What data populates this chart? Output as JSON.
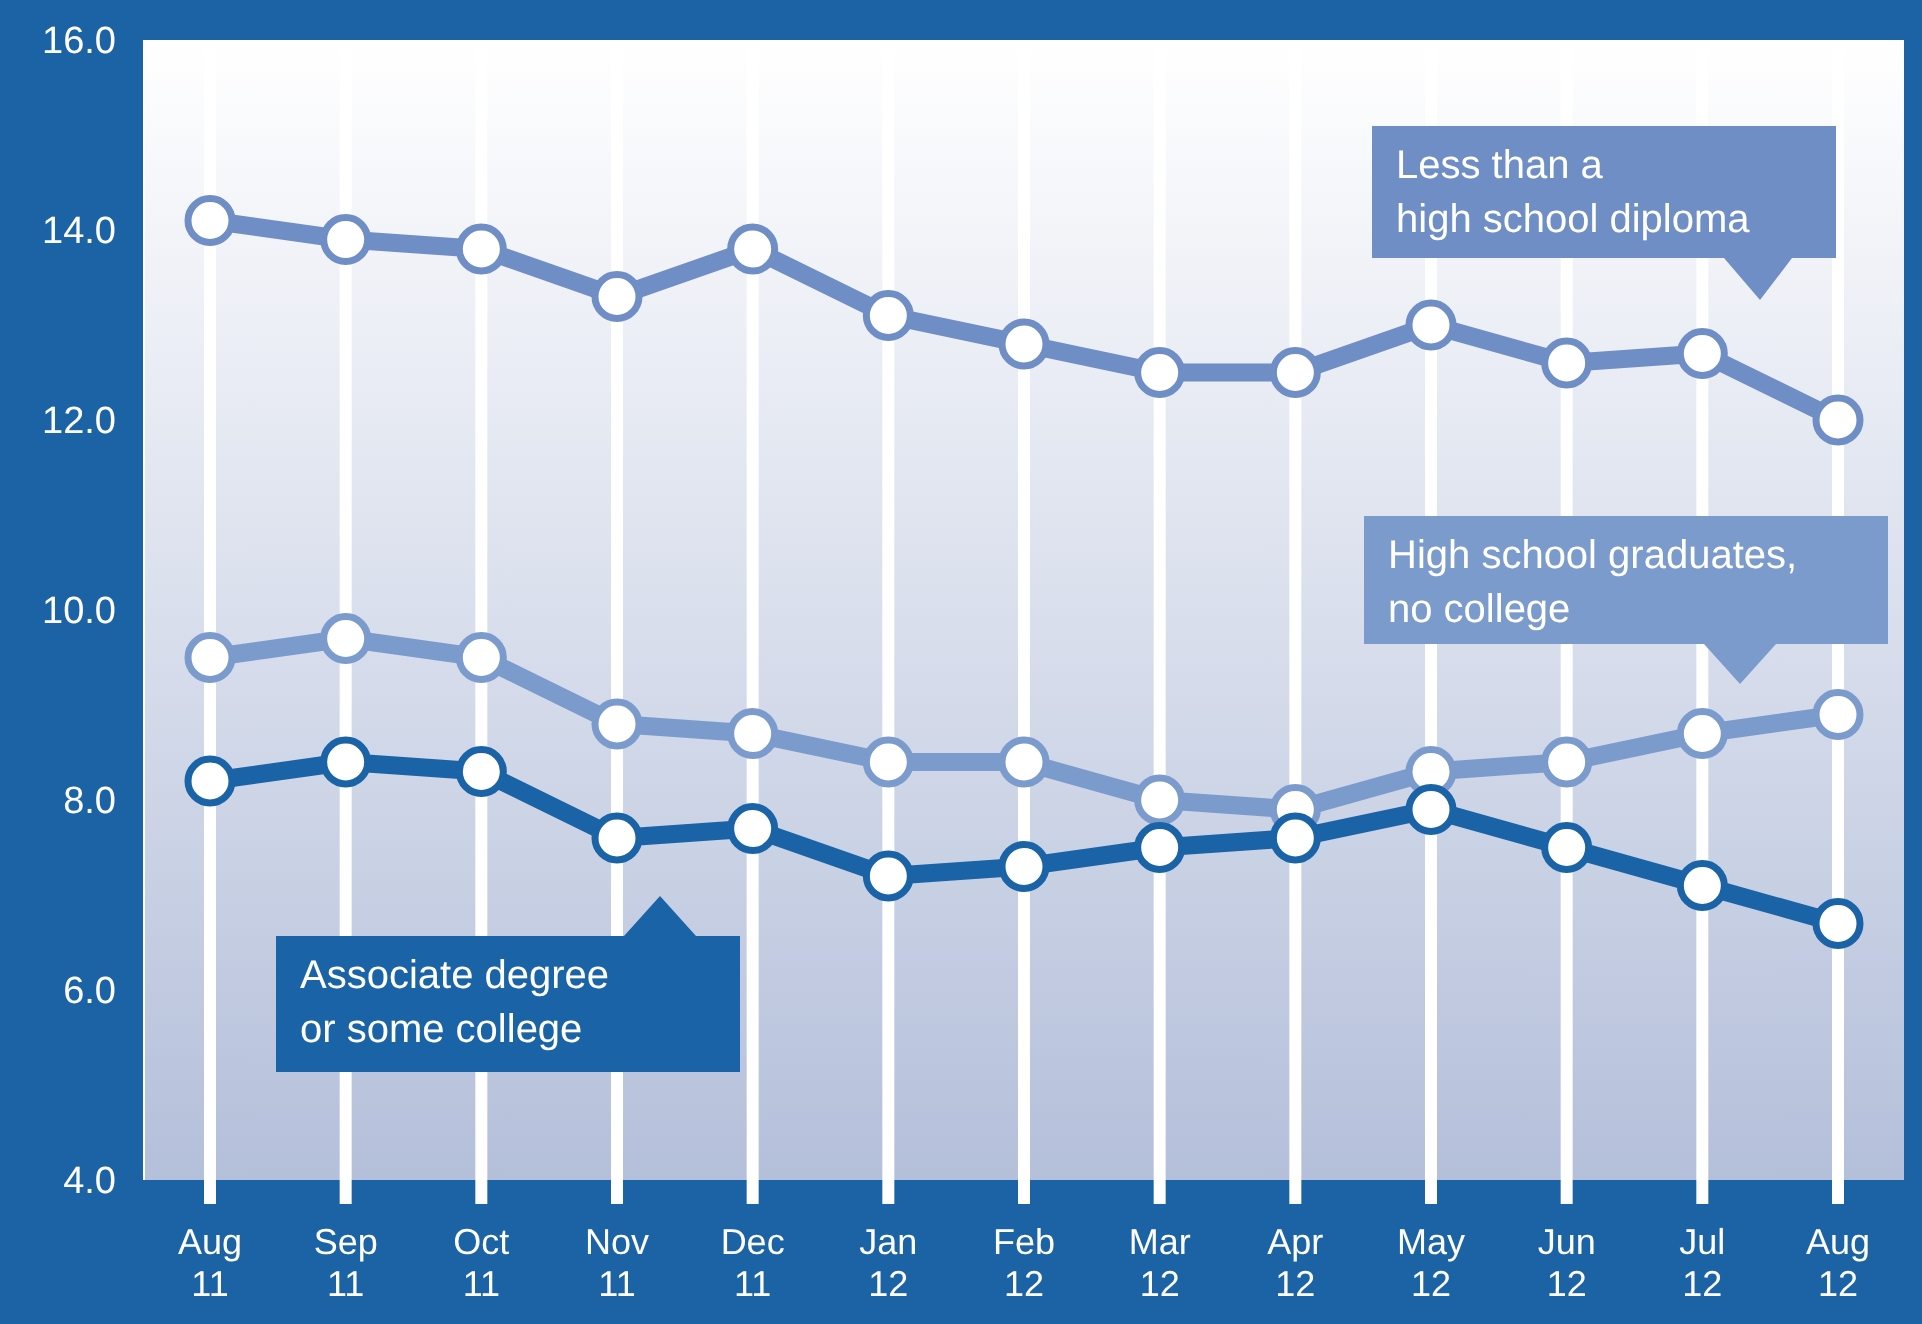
{
  "chart_data": {
    "type": "line",
    "categories": [
      "Aug 11",
      "Sep 11",
      "Oct 11",
      "Nov 11",
      "Dec 11",
      "Jan 12",
      "Feb 12",
      "Mar 12",
      "Apr 12",
      "May 12",
      "Jun 12",
      "Jul 12",
      "Aug 12"
    ],
    "series": [
      {
        "name": "Less than a high school diploma",
        "color": "#6f8ec6",
        "values": [
          14.1,
          13.9,
          13.8,
          13.3,
          13.8,
          13.1,
          12.8,
          12.5,
          12.5,
          13.0,
          12.6,
          12.7,
          12.0
        ]
      },
      {
        "name": "High school graduates, no college",
        "color": "#7c9bcd",
        "values": [
          9.5,
          9.7,
          9.5,
          8.8,
          8.7,
          8.4,
          8.4,
          8.0,
          7.9,
          8.3,
          8.4,
          8.7,
          8.9
        ]
      },
      {
        "name": "Associate degree or some college",
        "color": "#1a63a6",
        "values": [
          8.2,
          8.4,
          8.3,
          7.6,
          7.7,
          7.2,
          7.3,
          7.5,
          7.6,
          7.9,
          7.5,
          7.1,
          6.7
        ]
      }
    ],
    "ylim": [
      4,
      16
    ],
    "yticks": [
      {
        "value": 4,
        "label": "4.0"
      },
      {
        "value": 6,
        "label": "6.0"
      },
      {
        "value": 8,
        "label": "8.0"
      },
      {
        "value": 10,
        "label": "10.0"
      },
      {
        "value": 12,
        "label": "12.0"
      },
      {
        "value": 14,
        "label": "14.0"
      },
      {
        "value": 16,
        "label": "16.0"
      }
    ],
    "grid": "x",
    "marker": "circle",
    "line_style": "solid"
  }
}
